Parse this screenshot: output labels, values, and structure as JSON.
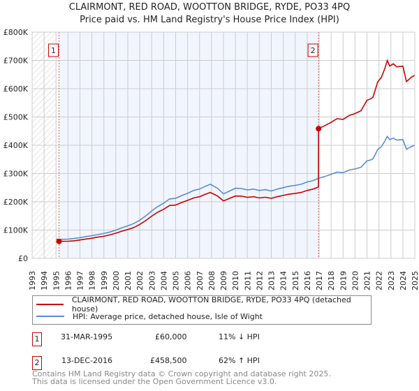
{
  "title": "CLAIRMONT, RED ROAD, WOOTTON BRIDGE, RYDE, PO33 4PQ",
  "subtitle": "Price paid vs. HM Land Registry's House Price Index (HPI)",
  "chart_data": {
    "type": "line",
    "title": "CLAIRMONT, RED ROAD, WOOTTON BRIDGE, RYDE, PO33 4PQ",
    "subtitle": "Price paid vs. HM Land Registry's House Price Index (HPI)",
    "xlim": [
      1993,
      2025
    ],
    "ylim": [
      0,
      800000
    ],
    "x_ticks": [
      "1993",
      "1994",
      "1995",
      "1996",
      "1997",
      "1998",
      "1999",
      "2000",
      "2001",
      "2002",
      "2003",
      "2004",
      "2005",
      "2006",
      "2007",
      "2008",
      "2009",
      "2010",
      "2011",
      "2012",
      "2013",
      "2014",
      "2015",
      "2016",
      "2017",
      "2018",
      "2019",
      "2020",
      "2021",
      "2022",
      "2023",
      "2024",
      "2025"
    ],
    "y_ticks": [
      "£0",
      "£100K",
      "£200K",
      "£300K",
      "£400K",
      "£500K",
      "£600K",
      "£700K",
      "£800K"
    ],
    "grid": true,
    "series": [
      {
        "name": "CLAIRMONT, RED ROAD, WOOTTON BRIDGE, RYDE, PO33 4PQ (detached house)",
        "color": "#cc0000",
        "x": [
          1995.25,
          1996,
          1996.5,
          1997,
          1997.5,
          1998,
          1998.5,
          1999,
          1999.5,
          2000,
          2000.5,
          2001,
          2001.5,
          2002,
          2002.5,
          2003,
          2003.5,
          2004,
          2004.5,
          2005,
          2005.5,
          2006,
          2006.5,
          2007,
          2007.5,
          2007.9,
          2008.5,
          2009,
          2009.5,
          2010,
          2010.5,
          2011,
          2011.5,
          2012,
          2012.5,
          2013,
          2013.5,
          2014,
          2014.5,
          2015,
          2015.5,
          2016,
          2016.5,
          2016.94,
          2016.95,
          2017.5,
          2018,
          2018.5,
          2019,
          2019.5,
          2020,
          2020.5,
          2021,
          2021.3,
          2021.5,
          2021.9,
          2022.2,
          2022.5,
          2022.7,
          2022.9,
          2023.2,
          2023.5,
          2024,
          2024.3,
          2024.7,
          2025
        ],
        "y": [
          60000,
          60500,
          62000,
          65000,
          68500,
          71000,
          75000,
          78000,
          83000,
          89000,
          96000,
          102000,
          109000,
          120000,
          133500,
          149500,
          163000,
          173500,
          187000,
          188500,
          197500,
          205000,
          213500,
          218000,
          227000,
          233000,
          220500,
          203000,
          212000,
          220500,
          220000,
          215500,
          218000,
          213500,
          216000,
          212000,
          218000,
          222500,
          227000,
          229500,
          233000,
          240000,
          245000,
          252000,
          458500,
          470000,
          481000,
          494000,
          491000,
          505000,
          512000,
          522000,
          559000,
          564000,
          570000,
          624000,
          640000,
          672000,
          700000,
          680000,
          688000,
          677000,
          680000,
          625000,
          640000,
          648000
        ]
      },
      {
        "name": "HPI: Average price, detached house, Isle of Wight",
        "color": "#5b8bd0",
        "x": [
          1995,
          1995.25,
          1996,
          1996.5,
          1997,
          1997.5,
          1998,
          1998.5,
          1999,
          1999.5,
          2000,
          2000.5,
          2001,
          2001.5,
          2002,
          2002.5,
          2003,
          2003.5,
          2004,
          2004.5,
          2005,
          2005.5,
          2006,
          2006.5,
          2007,
          2007.5,
          2007.9,
          2008.5,
          2009,
          2009.5,
          2010,
          2010.5,
          2011,
          2011.5,
          2012,
          2012.5,
          2013,
          2013.5,
          2014,
          2014.5,
          2015,
          2015.5,
          2016,
          2016.5,
          2016.95,
          2017.5,
          2018,
          2018.5,
          2019,
          2019.5,
          2020,
          2020.5,
          2021,
          2021.3,
          2021.5,
          2021.9,
          2022.2,
          2022.5,
          2022.7,
          2022.9,
          2023.2,
          2023.5,
          2024,
          2024.3,
          2024.7,
          2025
        ],
        "y": [
          68000,
          67000,
          68000,
          70000,
          73000,
          77000,
          80000,
          84000,
          88000,
          93000,
          100000,
          108000,
          115000,
          123000,
          135000,
          150000,
          168000,
          183000,
          195000,
          210000,
          212000,
          222000,
          230000,
          240000,
          245000,
          255000,
          262000,
          248000,
          228000,
          238000,
          248000,
          247000,
          242000,
          245000,
          240000,
          243000,
          238000,
          245000,
          250000,
          255000,
          258000,
          262000,
          270000,
          275000,
          283000,
          290000,
          297000,
          305000,
          303000,
          312000,
          316000,
          322000,
          345000,
          348000,
          352000,
          385000,
          395000,
          415000,
          431000,
          420000,
          425000,
          418000,
          420000,
          386000,
          395000,
          400000
        ]
      }
    ],
    "annotations": [
      {
        "label": "1",
        "x": 1995.25,
        "y": 60000
      },
      {
        "label": "2",
        "x": 2016.95,
        "y": 458500
      }
    ],
    "legend_placement": "bottom"
  },
  "legend": [
    {
      "label": "CLAIRMONT, RED ROAD, WOOTTON BRIDGE, RYDE, PO33 4PQ (detached house)",
      "color": "#cc0000"
    },
    {
      "label": "HPI: Average price, detached house, Isle of Wight",
      "color": "#5b8bd0"
    }
  ],
  "sales": [
    {
      "num": "1",
      "date": "31-MAR-1995",
      "price": "£60,000",
      "hpi": "11% ↓ HPI"
    },
    {
      "num": "2",
      "date": "13-DEC-2016",
      "price": "£458,500",
      "hpi": "62% ↑ HPI"
    }
  ],
  "footer": {
    "line1": "Contains HM Land Registry data © Crown copyright and database right 2025.",
    "line2": "This data is licensed under the Open Government Licence v3.0."
  }
}
